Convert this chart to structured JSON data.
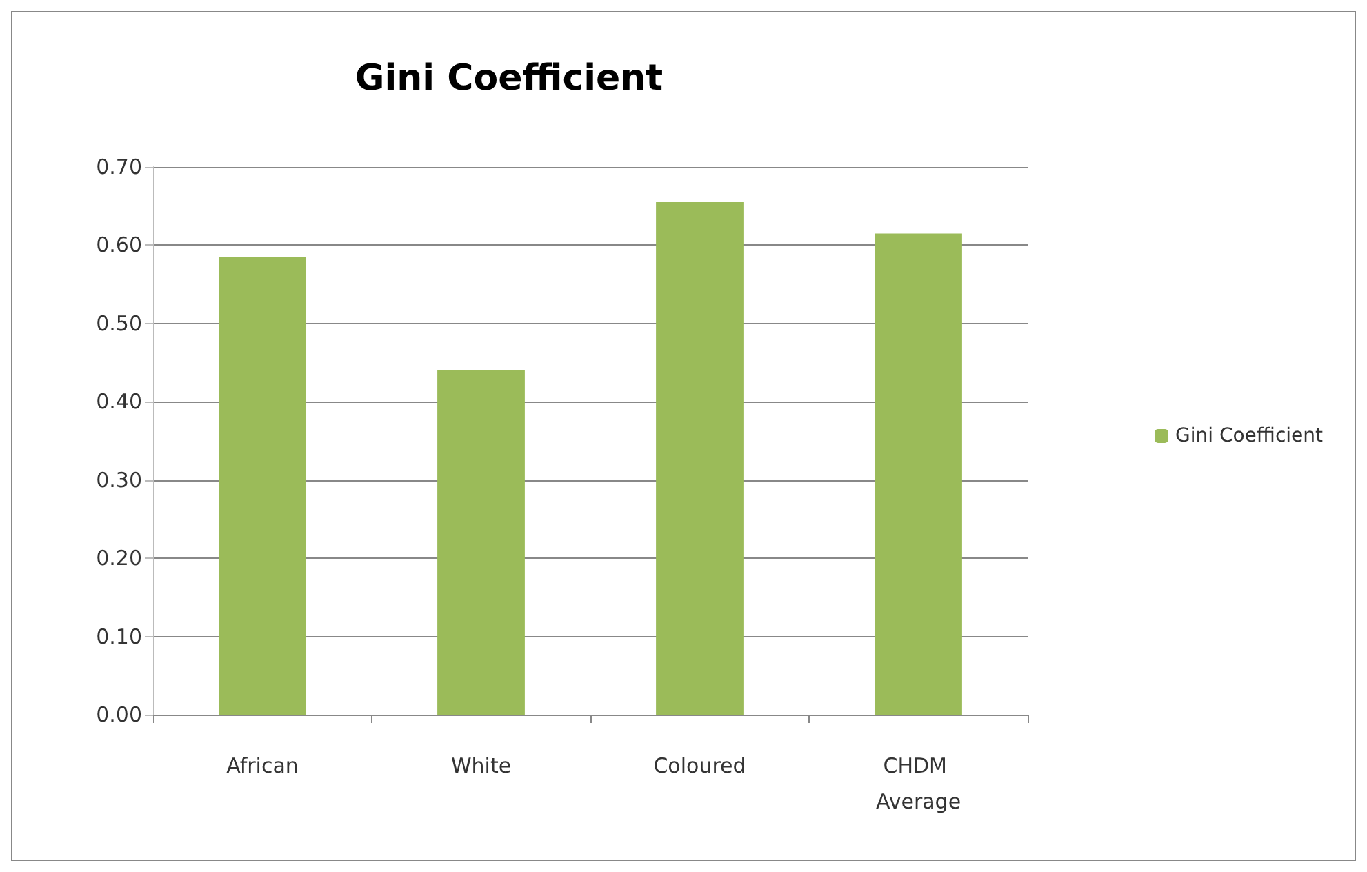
{
  "chart_data": {
    "type": "bar",
    "title": "Gini Coefficient",
    "categories": [
      "African",
      "White",
      "Coloured",
      "CHDM Average"
    ],
    "series": [
      {
        "name": "Gini Coefficient",
        "color": "#9bbb59",
        "values": [
          0.585,
          0.44,
          0.655,
          0.615
        ]
      }
    ],
    "ylim": [
      0,
      0.7
    ],
    "yticks": [
      {
        "value": 0,
        "label": "0.00"
      },
      {
        "value": 0.1,
        "label": "0.10"
      },
      {
        "value": 0.2,
        "label": "0.20"
      },
      {
        "value": 0.3,
        "label": "0.30"
      },
      {
        "value": 0.4,
        "label": "0.40"
      },
      {
        "value": 0.5,
        "label": "0.50"
      },
      {
        "value": 0.6,
        "label": "0.60"
      },
      {
        "value": 0.7,
        "label": "0.70"
      }
    ],
    "grid": "y",
    "legend": "right"
  }
}
